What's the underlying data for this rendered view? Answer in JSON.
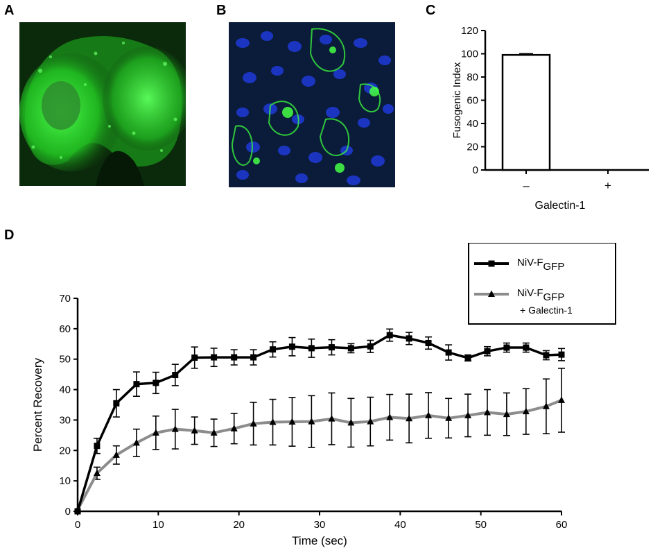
{
  "panels": {
    "a": {
      "letter": "A",
      "image": "confocal-green-fluorescent-cells",
      "colors": {
        "background": "#0b2a0b",
        "signal": "#39ff39"
      }
    },
    "b": {
      "letter": "B",
      "image": "fluorescent-monolayer-blue-nuclei-green-membranes",
      "colors": {
        "background": "#0a1c3a",
        "nuclei": "#2a3cff",
        "signal": "#3cff3c"
      }
    },
    "c": {
      "letter": "C"
    },
    "d": {
      "letter": "D"
    }
  },
  "chart_data": [
    {
      "id": "C",
      "type": "bar",
      "categories": [
        "–",
        "+"
      ],
      "values": [
        99,
        0
      ],
      "errors": [
        1,
        0
      ],
      "ylabel": "Fusogenic Index",
      "xlabel": "Galectin-1",
      "ylim": [
        0,
        120
      ],
      "yticks": [
        0,
        20,
        40,
        60,
        80,
        100,
        120
      ],
      "bar_fill": "#ffffff",
      "bar_stroke": "#000000"
    },
    {
      "id": "D",
      "type": "line",
      "xlabel": "Time (sec)",
      "ylabel": "Percent Recovery",
      "xlim": [
        0,
        60
      ],
      "ylim": [
        0,
        70
      ],
      "xticks": [
        0,
        10,
        20,
        30,
        40,
        50,
        60
      ],
      "yticks": [
        0,
        10,
        20,
        30,
        40,
        50,
        60,
        70
      ],
      "legend_position": "top-right",
      "series": [
        {
          "name_main": "NiV-F",
          "name_sub": "GFP",
          "name_extra": "",
          "marker": "square",
          "color": "#000000",
          "points": [
            {
              "x": 0,
              "y": 0,
              "err": 0
            },
            {
              "x": 2.4,
              "y": 21.5,
              "err": 2.5
            },
            {
              "x": 4.8,
              "y": 35.5,
              "err": 4.5
            },
            {
              "x": 7.3,
              "y": 41.8,
              "err": 4
            },
            {
              "x": 9.7,
              "y": 42.2,
              "err": 3.5
            },
            {
              "x": 12.1,
              "y": 44.8,
              "err": 3.5
            },
            {
              "x": 14.5,
              "y": 50.5,
              "err": 3.5
            },
            {
              "x": 16.9,
              "y": 50.6,
              "err": 3
            },
            {
              "x": 19.4,
              "y": 50.6,
              "err": 2.5
            },
            {
              "x": 21.8,
              "y": 50.6,
              "err": 2.5
            },
            {
              "x": 24.2,
              "y": 53.2,
              "err": 2.5
            },
            {
              "x": 26.6,
              "y": 54.1,
              "err": 3
            },
            {
              "x": 29.0,
              "y": 53.6,
              "err": 3
            },
            {
              "x": 31.5,
              "y": 53.9,
              "err": 2.5
            },
            {
              "x": 33.9,
              "y": 53.6,
              "err": 1.5
            },
            {
              "x": 36.3,
              "y": 54.2,
              "err": 2
            },
            {
              "x": 38.7,
              "y": 57.9,
              "err": 2
            },
            {
              "x": 41.1,
              "y": 56.8,
              "err": 2
            },
            {
              "x": 43.5,
              "y": 55.3,
              "err": 2
            },
            {
              "x": 46.0,
              "y": 52.2,
              "err": 2.5
            },
            {
              "x": 48.4,
              "y": 50.4,
              "err": 1
            },
            {
              "x": 50.8,
              "y": 52.6,
              "err": 1.5
            },
            {
              "x": 53.2,
              "y": 53.8,
              "err": 1.5
            },
            {
              "x": 55.6,
              "y": 53.8,
              "err": 1.5
            },
            {
              "x": 58.1,
              "y": 51.3,
              "err": 1.5
            },
            {
              "x": 60,
              "y": 51.5,
              "err": 2
            }
          ]
        },
        {
          "name_main": "NiV-F",
          "name_sub": "GFP",
          "name_extra": "+ Galectin-1",
          "marker": "triangle",
          "color": "#8c8c8c",
          "points": [
            {
              "x": 0,
              "y": 0.5,
              "err": 0
            },
            {
              "x": 2.4,
              "y": 12.5,
              "err": 2
            },
            {
              "x": 4.8,
              "y": 18.5,
              "err": 3
            },
            {
              "x": 7.3,
              "y": 22.5,
              "err": 4.5
            },
            {
              "x": 9.7,
              "y": 25.8,
              "err": 5.5
            },
            {
              "x": 12.1,
              "y": 27.0,
              "err": 6.5
            },
            {
              "x": 14.5,
              "y": 26.5,
              "err": 4.5
            },
            {
              "x": 16.9,
              "y": 25.8,
              "err": 4.5
            },
            {
              "x": 19.4,
              "y": 27.2,
              "err": 5
            },
            {
              "x": 21.8,
              "y": 28.8,
              "err": 7
            },
            {
              "x": 24.2,
              "y": 29.3,
              "err": 7.5
            },
            {
              "x": 26.6,
              "y": 29.4,
              "err": 8
            },
            {
              "x": 29.0,
              "y": 29.5,
              "err": 8.5
            },
            {
              "x": 31.5,
              "y": 30.4,
              "err": 8.5
            },
            {
              "x": 33.9,
              "y": 29.1,
              "err": 8
            },
            {
              "x": 36.3,
              "y": 29.5,
              "err": 8
            },
            {
              "x": 38.7,
              "y": 30.9,
              "err": 7.5
            },
            {
              "x": 41.1,
              "y": 30.5,
              "err": 8
            },
            {
              "x": 43.5,
              "y": 31.5,
              "err": 7.5
            },
            {
              "x": 46.0,
              "y": 30.6,
              "err": 6.5
            },
            {
              "x": 48.4,
              "y": 31.5,
              "err": 7
            },
            {
              "x": 50.8,
              "y": 32.5,
              "err": 7.5
            },
            {
              "x": 53.2,
              "y": 31.9,
              "err": 7
            },
            {
              "x": 55.6,
              "y": 32.8,
              "err": 7.5
            },
            {
              "x": 58.1,
              "y": 34.5,
              "err": 9
            },
            {
              "x": 60,
              "y": 36.5,
              "err": 10.5
            }
          ]
        }
      ]
    }
  ]
}
